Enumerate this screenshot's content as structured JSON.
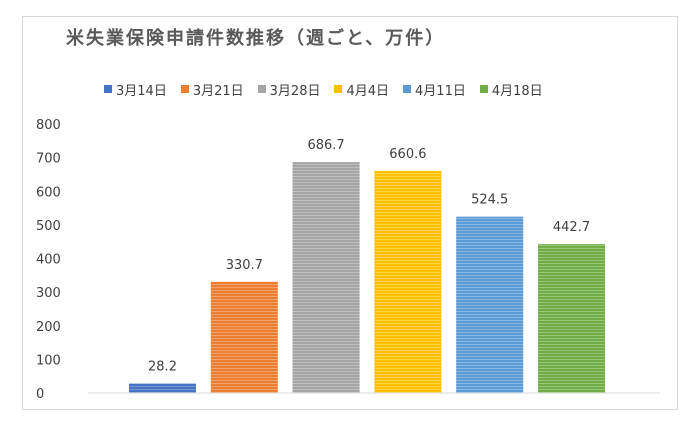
{
  "chart_data": {
    "type": "bar",
    "title": "米失業保険申請件数推移（週ごと、万件）",
    "categories": [
      "3月14日",
      "3月21日",
      "3月28日",
      "4月4日",
      "4月11日",
      "4月18日"
    ],
    "values": [
      28.2,
      330.7,
      686.7,
      660.6,
      524.5,
      442.7
    ],
    "data_labels": [
      "28.2",
      "330.7",
      "686.7",
      "660.6",
      "524.5",
      "442.7"
    ],
    "colors": [
      "#4472c4",
      "#ed7d31",
      "#a5a5a5",
      "#ffc000",
      "#5b9bd5",
      "#70ad47"
    ],
    "ylim": [
      0,
      800
    ],
    "yticks": [
      "0",
      "100",
      "200",
      "300",
      "400",
      "500",
      "600",
      "700",
      "800"
    ],
    "legend_position": "top",
    "grid": false
  }
}
